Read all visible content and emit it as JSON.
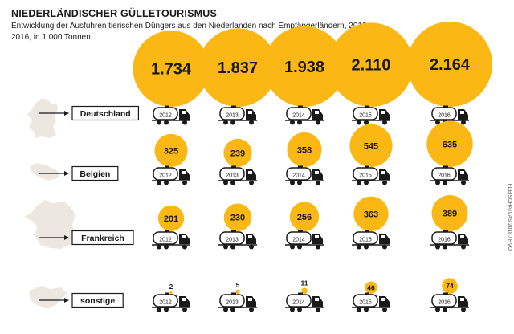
{
  "header": {
    "title": "NIEDERLÄNDISCHER GÜLLETOURISMUS",
    "subtitle": "Entwicklung der Ausfuhren tierischen Düngers aus den Niederlanden nach Empfängerländern, 2012–2016, in 1.000 Tonnen"
  },
  "credit": "FLEISCHATLAS 2018 / RVO",
  "colors": {
    "bubble": "#fbb713",
    "ink": "#1a1a1a",
    "map": "#ece7e1"
  },
  "chart_data": {
    "type": "bubble",
    "title": "NIEDERLÄNDISCHER GÜLLETOURISMUS",
    "unit": "1.000 Tonnen",
    "years": [
      "2012",
      "2013",
      "2014",
      "2015",
      "2016"
    ],
    "series": [
      {
        "name": "Deutschland",
        "values": [
          1734,
          1837,
          1938,
          2110,
          2164
        ],
        "labels": [
          "1.734",
          "1.837",
          "1.938",
          "2.110",
          "2.164"
        ]
      },
      {
        "name": "Belgien",
        "values": [
          325,
          239,
          358,
          545,
          635
        ],
        "labels": [
          "325",
          "239",
          "358",
          "545",
          "635"
        ]
      },
      {
        "name": "Frankreich",
        "values": [
          201,
          230,
          256,
          363,
          389
        ],
        "labels": [
          "201",
          "230",
          "256",
          "363",
          "389"
        ]
      },
      {
        "name": "sonstige",
        "values": [
          2,
          5,
          11,
          46,
          74
        ],
        "labels": [
          "2",
          "5",
          "11",
          "46",
          "74"
        ]
      }
    ]
  }
}
